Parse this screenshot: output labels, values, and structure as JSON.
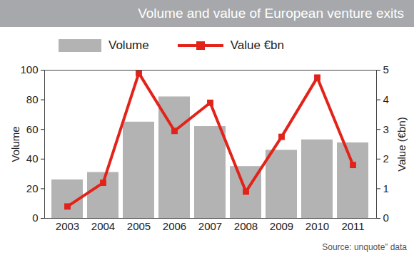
{
  "chart_data": {
    "type": "bar",
    "title": "Volume and value of European venture exits",
    "source": "Source: unquote” data",
    "categories": [
      "2003",
      "2004",
      "2005",
      "2006",
      "2007",
      "2008",
      "2009",
      "2010",
      "2011"
    ],
    "series": [
      {
        "name": "Volume",
        "type": "bar",
        "color": "#b3b3b3",
        "values": [
          26,
          31,
          65,
          82,
          62,
          35,
          46,
          53,
          51
        ]
      },
      {
        "name": "Value €bn",
        "type": "line",
        "color": "#e2231a",
        "marker": "square",
        "axis": "y2",
        "values": [
          0.4,
          1.2,
          4.9,
          2.95,
          3.9,
          0.9,
          2.75,
          4.75,
          1.8
        ]
      }
    ],
    "ylabel": "Volume",
    "y2label": "Value (€bn)",
    "ylim": [
      0,
      100
    ],
    "yticks": [
      0,
      20,
      40,
      60,
      80,
      100
    ],
    "y2lim": [
      0,
      5
    ],
    "y2ticks": [
      0,
      1,
      2,
      3,
      4,
      5
    ],
    "legend": "top"
  }
}
